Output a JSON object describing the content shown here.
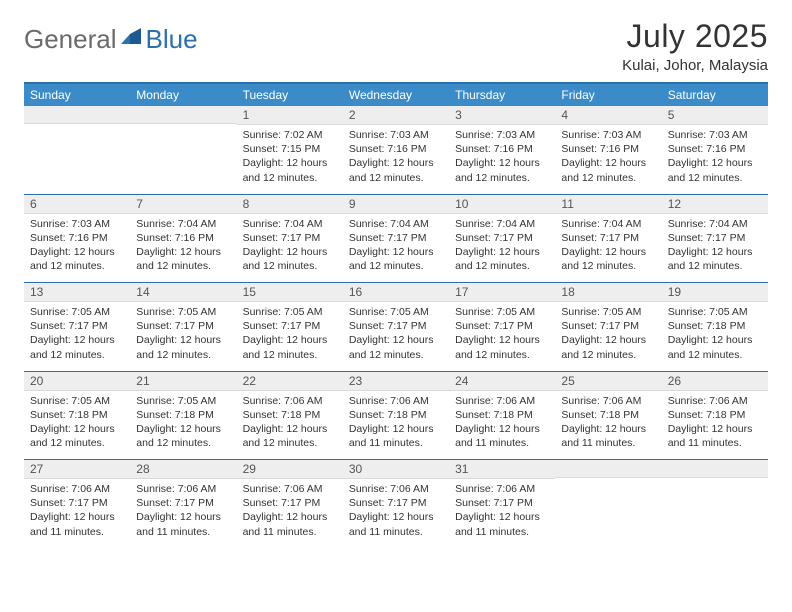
{
  "brand": {
    "general": "General",
    "blue": "Blue"
  },
  "title": {
    "month": "July 2025",
    "location": "Kulai, Johor, Malaysia"
  },
  "colors": {
    "header_bg": "#3b8bc8",
    "rule": "#2b6fab",
    "daynum_bg": "#eeeeee",
    "logo_gray": "#6a6a6a",
    "logo_blue": "#2b6fab",
    "text": "#333333",
    "background": "#ffffff"
  },
  "weekday_headers": [
    "Sunday",
    "Monday",
    "Tuesday",
    "Wednesday",
    "Thursday",
    "Friday",
    "Saturday"
  ],
  "weeks": [
    [
      {
        "day": "",
        "lines": []
      },
      {
        "day": "",
        "lines": []
      },
      {
        "day": "1",
        "lines": [
          "Sunrise: 7:02 AM",
          "Sunset: 7:15 PM",
          "Daylight: 12 hours and 12 minutes."
        ]
      },
      {
        "day": "2",
        "lines": [
          "Sunrise: 7:03 AM",
          "Sunset: 7:16 PM",
          "Daylight: 12 hours and 12 minutes."
        ]
      },
      {
        "day": "3",
        "lines": [
          "Sunrise: 7:03 AM",
          "Sunset: 7:16 PM",
          "Daylight: 12 hours and 12 minutes."
        ]
      },
      {
        "day": "4",
        "lines": [
          "Sunrise: 7:03 AM",
          "Sunset: 7:16 PM",
          "Daylight: 12 hours and 12 minutes."
        ]
      },
      {
        "day": "5",
        "lines": [
          "Sunrise: 7:03 AM",
          "Sunset: 7:16 PM",
          "Daylight: 12 hours and 12 minutes."
        ]
      }
    ],
    [
      {
        "day": "6",
        "lines": [
          "Sunrise: 7:03 AM",
          "Sunset: 7:16 PM",
          "Daylight: 12 hours and 12 minutes."
        ]
      },
      {
        "day": "7",
        "lines": [
          "Sunrise: 7:04 AM",
          "Sunset: 7:16 PM",
          "Daylight: 12 hours and 12 minutes."
        ]
      },
      {
        "day": "8",
        "lines": [
          "Sunrise: 7:04 AM",
          "Sunset: 7:17 PM",
          "Daylight: 12 hours and 12 minutes."
        ]
      },
      {
        "day": "9",
        "lines": [
          "Sunrise: 7:04 AM",
          "Sunset: 7:17 PM",
          "Daylight: 12 hours and 12 minutes."
        ]
      },
      {
        "day": "10",
        "lines": [
          "Sunrise: 7:04 AM",
          "Sunset: 7:17 PM",
          "Daylight: 12 hours and 12 minutes."
        ]
      },
      {
        "day": "11",
        "lines": [
          "Sunrise: 7:04 AM",
          "Sunset: 7:17 PM",
          "Daylight: 12 hours and 12 minutes."
        ]
      },
      {
        "day": "12",
        "lines": [
          "Sunrise: 7:04 AM",
          "Sunset: 7:17 PM",
          "Daylight: 12 hours and 12 minutes."
        ]
      }
    ],
    [
      {
        "day": "13",
        "lines": [
          "Sunrise: 7:05 AM",
          "Sunset: 7:17 PM",
          "Daylight: 12 hours and 12 minutes."
        ]
      },
      {
        "day": "14",
        "lines": [
          "Sunrise: 7:05 AM",
          "Sunset: 7:17 PM",
          "Daylight: 12 hours and 12 minutes."
        ]
      },
      {
        "day": "15",
        "lines": [
          "Sunrise: 7:05 AM",
          "Sunset: 7:17 PM",
          "Daylight: 12 hours and 12 minutes."
        ]
      },
      {
        "day": "16",
        "lines": [
          "Sunrise: 7:05 AM",
          "Sunset: 7:17 PM",
          "Daylight: 12 hours and 12 minutes."
        ]
      },
      {
        "day": "17",
        "lines": [
          "Sunrise: 7:05 AM",
          "Sunset: 7:17 PM",
          "Daylight: 12 hours and 12 minutes."
        ]
      },
      {
        "day": "18",
        "lines": [
          "Sunrise: 7:05 AM",
          "Sunset: 7:17 PM",
          "Daylight: 12 hours and 12 minutes."
        ]
      },
      {
        "day": "19",
        "lines": [
          "Sunrise: 7:05 AM",
          "Sunset: 7:18 PM",
          "Daylight: 12 hours and 12 minutes."
        ]
      }
    ],
    [
      {
        "day": "20",
        "lines": [
          "Sunrise: 7:05 AM",
          "Sunset: 7:18 PM",
          "Daylight: 12 hours and 12 minutes."
        ]
      },
      {
        "day": "21",
        "lines": [
          "Sunrise: 7:05 AM",
          "Sunset: 7:18 PM",
          "Daylight: 12 hours and 12 minutes."
        ]
      },
      {
        "day": "22",
        "lines": [
          "Sunrise: 7:06 AM",
          "Sunset: 7:18 PM",
          "Daylight: 12 hours and 12 minutes."
        ]
      },
      {
        "day": "23",
        "lines": [
          "Sunrise: 7:06 AM",
          "Sunset: 7:18 PM",
          "Daylight: 12 hours and 11 minutes."
        ]
      },
      {
        "day": "24",
        "lines": [
          "Sunrise: 7:06 AM",
          "Sunset: 7:18 PM",
          "Daylight: 12 hours and 11 minutes."
        ]
      },
      {
        "day": "25",
        "lines": [
          "Sunrise: 7:06 AM",
          "Sunset: 7:18 PM",
          "Daylight: 12 hours and 11 minutes."
        ]
      },
      {
        "day": "26",
        "lines": [
          "Sunrise: 7:06 AM",
          "Sunset: 7:18 PM",
          "Daylight: 12 hours and 11 minutes."
        ]
      }
    ],
    [
      {
        "day": "27",
        "lines": [
          "Sunrise: 7:06 AM",
          "Sunset: 7:17 PM",
          "Daylight: 12 hours and 11 minutes."
        ]
      },
      {
        "day": "28",
        "lines": [
          "Sunrise: 7:06 AM",
          "Sunset: 7:17 PM",
          "Daylight: 12 hours and 11 minutes."
        ]
      },
      {
        "day": "29",
        "lines": [
          "Sunrise: 7:06 AM",
          "Sunset: 7:17 PM",
          "Daylight: 12 hours and 11 minutes."
        ]
      },
      {
        "day": "30",
        "lines": [
          "Sunrise: 7:06 AM",
          "Sunset: 7:17 PM",
          "Daylight: 12 hours and 11 minutes."
        ]
      },
      {
        "day": "31",
        "lines": [
          "Sunrise: 7:06 AM",
          "Sunset: 7:17 PM",
          "Daylight: 12 hours and 11 minutes."
        ]
      },
      {
        "day": "",
        "lines": []
      },
      {
        "day": "",
        "lines": []
      }
    ]
  ]
}
